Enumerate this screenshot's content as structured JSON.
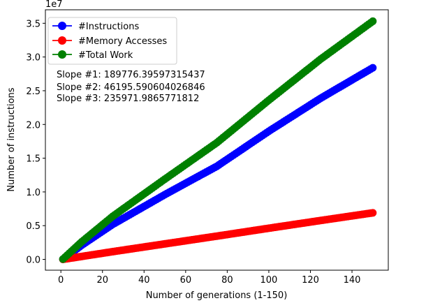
{
  "chart_data": {
    "type": "line",
    "xlabel": "Number of generations (1-150)",
    "ylabel": "Number of instructions",
    "y_offset_text": "1e7",
    "y_scale": 10000000,
    "xlim": [
      -7.45,
      157.45
    ],
    "ylim": [
      -1600000,
      37000000
    ],
    "x_ticks": [
      0,
      20,
      40,
      60,
      80,
      100,
      120,
      140
    ],
    "x_tick_labels": [
      "0",
      "20",
      "40",
      "60",
      "80",
      "100",
      "120",
      "140"
    ],
    "y_ticks": [
      0,
      5000000,
      10000000,
      15000000,
      20000000,
      25000000,
      30000000,
      35000000
    ],
    "y_tick_labels": [
      "0.0",
      "0.5",
      "1.0",
      "1.5",
      "2.0",
      "2.5",
      "3.0",
      "3.5"
    ],
    "x_start": 1,
    "x_end": 150,
    "legend_position": "upper-left",
    "series": [
      {
        "name": "#Instructions",
        "color": "#0000ff",
        "points": [
          [
            1,
            30000
          ],
          [
            10,
            2100000
          ],
          [
            25,
            5200000
          ],
          [
            50,
            9600000
          ],
          [
            75,
            13800000
          ],
          [
            100,
            19000000
          ],
          [
            125,
            23900000
          ],
          [
            150,
            28400000
          ]
        ]
      },
      {
        "name": "#Memory Accesses",
        "color": "#ff0000",
        "points": [
          [
            1,
            5000
          ],
          [
            25,
            1150000
          ],
          [
            50,
            2300000
          ],
          [
            75,
            3450000
          ],
          [
            100,
            4620000
          ],
          [
            125,
            5770000
          ],
          [
            150,
            6900000
          ]
        ]
      },
      {
        "name": "#Total Work",
        "color": "#008000",
        "points": [
          [
            1,
            40000
          ],
          [
            10,
            2600000
          ],
          [
            25,
            6400000
          ],
          [
            50,
            11900000
          ],
          [
            75,
            17300000
          ],
          [
            100,
            23600000
          ],
          [
            125,
            29700000
          ],
          [
            150,
            35300000
          ]
        ]
      }
    ],
    "annotations": [
      "Slope #1: 189776.39597315437",
      "Slope #2: 46195.590604026846",
      "Slope #3: 235971.9865771812"
    ]
  }
}
